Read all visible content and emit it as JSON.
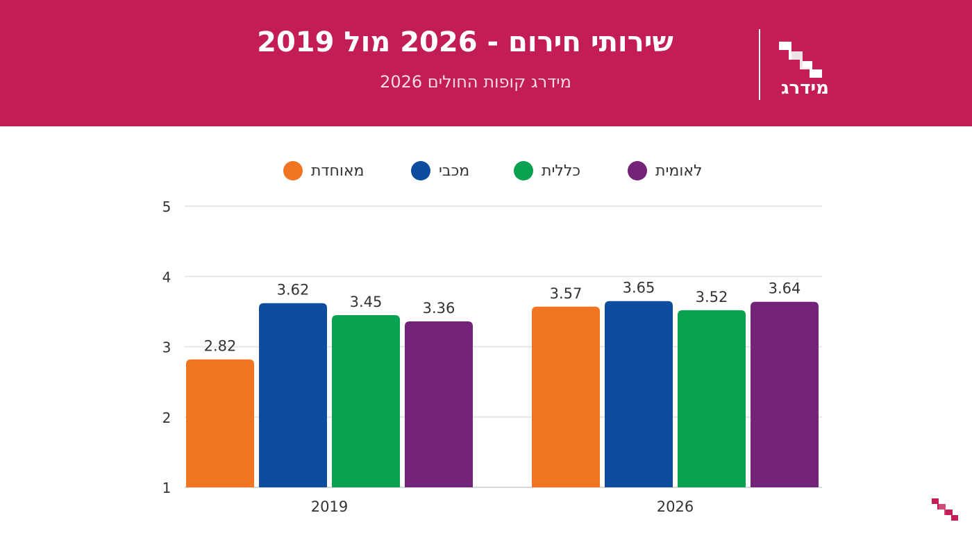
{
  "header": {
    "title": "שירותי חירום - 2026 מול 2019",
    "subtitle": "מידרג קופות החולים 2026",
    "logo_text": "מידרג",
    "background_color": "#c21d55"
  },
  "legend": [
    {
      "label": "מאוחדת",
      "color": "#f07522"
    },
    {
      "label": "מכבי",
      "color": "#0e4c9f"
    },
    {
      "label": "כללית",
      "color": "#0aa150"
    },
    {
      "label": "לאומית",
      "color": "#742478"
    }
  ],
  "chart_data": {
    "type": "bar",
    "title": "שירותי חירום - 2026 מול 2019",
    "categories": [
      "2019",
      "2026"
    ],
    "series": [
      {
        "name": "מאוחדת",
        "color": "#f07522",
        "values": [
          2.82,
          3.57
        ],
        "labels": [
          "2.82",
          "3.57"
        ]
      },
      {
        "name": "מכבי",
        "color": "#0e4c9f",
        "values": [
          3.62,
          3.65
        ],
        "labels": [
          "3.62",
          "3.65"
        ]
      },
      {
        "name": "כללית",
        "color": "#0aa150",
        "values": [
          3.45,
          3.52
        ],
        "labels": [
          "3.45",
          "3.52"
        ]
      },
      {
        "name": "לאומית",
        "color": "#742478",
        "values": [
          3.36,
          3.64
        ],
        "labels": [
          "3.36",
          "3.64"
        ]
      }
    ],
    "yticks": [
      "1",
      "2",
      "3",
      "4",
      "5"
    ],
    "ylim": [
      1,
      5
    ],
    "grid": true,
    "legend_position": "top-center",
    "data_labels": true
  }
}
